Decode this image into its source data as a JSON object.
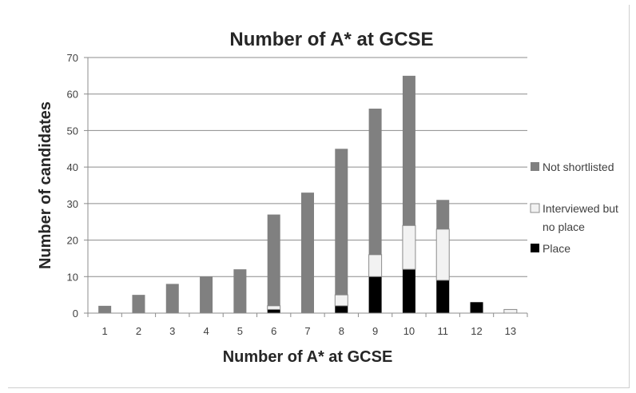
{
  "chart_data": {
    "type": "bar",
    "stacked": true,
    "title": "Number of A* at GCSE",
    "xlabel": "Number of A* at GCSE",
    "ylabel": "Number of candidates",
    "categories": [
      "1",
      "2",
      "3",
      "4",
      "5",
      "6",
      "7",
      "8",
      "9",
      "10",
      "11",
      "12",
      "13"
    ],
    "ylim": [
      0,
      70
    ],
    "yticks": [
      0,
      10,
      20,
      30,
      40,
      50,
      60,
      70
    ],
    "grid": true,
    "legend_position": "right",
    "series": [
      {
        "name": "Place",
        "color": "#000000",
        "values": [
          0,
          0,
          0,
          0,
          0,
          1,
          0,
          2,
          10,
          12,
          9,
          3,
          0
        ]
      },
      {
        "name": "Interviewed but no place",
        "color": "#f2f2f2",
        "values": [
          0,
          0,
          0,
          0,
          0,
          1,
          0,
          3,
          6,
          12,
          14,
          0,
          1
        ]
      },
      {
        "name": "Not shortlisted",
        "color": "#808080",
        "values": [
          2,
          5,
          8,
          10,
          12,
          25,
          33,
          40,
          40,
          41,
          8,
          0,
          0
        ]
      }
    ],
    "legend_order": [
      "Not shortlisted",
      "Interviewed but no place",
      "Place"
    ],
    "legend_lines": {
      "Not shortlisted": [
        "Not shortlisted"
      ],
      "Interviewed but no place": [
        "Interviewed but",
        "no place"
      ],
      "Place": [
        "Place"
      ]
    }
  }
}
